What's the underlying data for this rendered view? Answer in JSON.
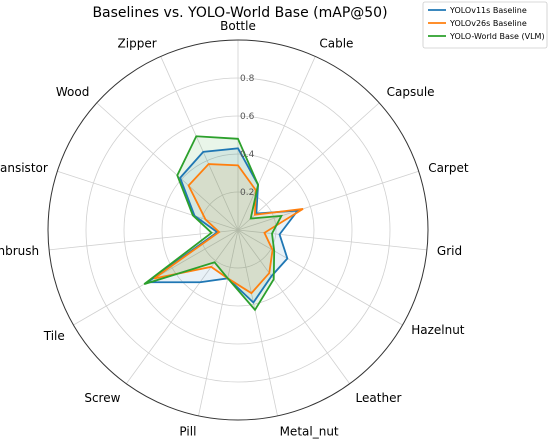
{
  "chart_data": {
    "type": "radar",
    "title": "Baselines vs. YOLO-World Base (mAP@50)",
    "categories": [
      "Bottle",
      "Cable",
      "Capsule",
      "Carpet",
      "Grid",
      "Hazelnut",
      "Leather",
      "Metal_nut",
      "Pill",
      "Screw",
      "Tile",
      "Toothbrush",
      "Transistor",
      "Wood",
      "Zipper"
    ],
    "rlim": [
      0,
      1.0
    ],
    "rticks": [
      0.2,
      0.4,
      0.6,
      0.8
    ],
    "rtick_labels": [
      "0.2",
      "0.4",
      "0.6",
      "0.8"
    ],
    "grid": true,
    "legend_position": "top-right",
    "series": [
      {
        "name": "YOLOv11s Baseline",
        "color": "#1f77b4",
        "values": [
          0.43,
          0.26,
          0.13,
          0.33,
          0.22,
          0.3,
          0.3,
          0.39,
          0.26,
          0.34,
          0.55,
          0.11,
          0.24,
          0.41,
          0.45
        ]
      },
      {
        "name": "YOLOv26s Baseline",
        "color": "#ff7f0e",
        "values": [
          0.34,
          0.23,
          0.12,
          0.36,
          0.14,
          0.21,
          0.28,
          0.34,
          0.26,
          0.24,
          0.51,
          0.1,
          0.18,
          0.35,
          0.38
        ]
      },
      {
        "name": "YOLO-World Base (VLM)",
        "color": "#2ca02c",
        "values": [
          0.48,
          0.26,
          0.09,
          0.24,
          0.18,
          0.22,
          0.32,
          0.43,
          0.26,
          0.21,
          0.57,
          0.14,
          0.25,
          0.43,
          0.54
        ]
      }
    ]
  }
}
